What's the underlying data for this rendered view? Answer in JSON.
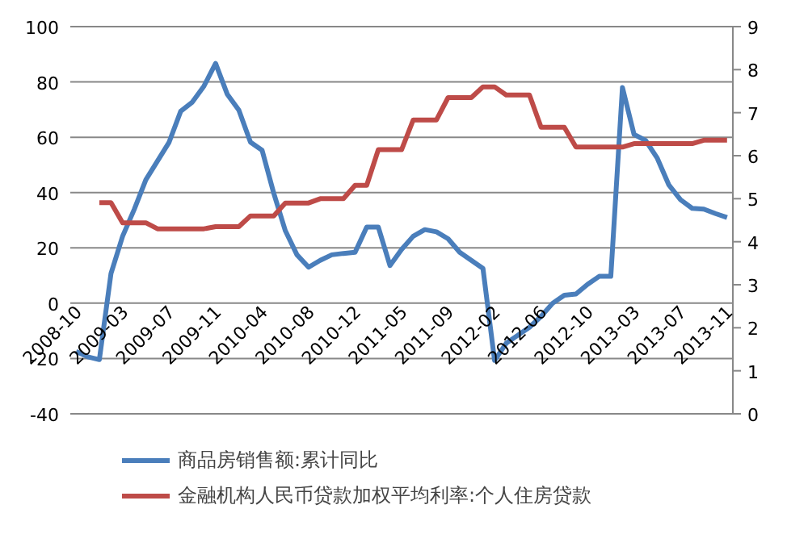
{
  "chart_data": {
    "type": "line",
    "categories": [
      "2008-10",
      null,
      null,
      null,
      "2009-03",
      null,
      null,
      null,
      "2009-07",
      null,
      null,
      null,
      "2009-11",
      null,
      null,
      null,
      "2010-04",
      null,
      null,
      null,
      "2010-08",
      null,
      null,
      null,
      "2010-12",
      null,
      null,
      null,
      "2011-05",
      null,
      null,
      null,
      "2011-09",
      null,
      null,
      null,
      "2012-02",
      null,
      null,
      null,
      "2012-06",
      null,
      null,
      null,
      "2012-10",
      null,
      null,
      null,
      "2013-03",
      null,
      null,
      null,
      "2013-07",
      null,
      null,
      null,
      "2013-11"
    ],
    "series": [
      {
        "name": "商品房销售额:累计同比",
        "color": "#4a7ebb",
        "values": [
          -17.5,
          -19.4,
          -20.4,
          10.7,
          24.2,
          33.9,
          44.6,
          51.4,
          58.2,
          69.4,
          72.7,
          78.5,
          86.7,
          75.6,
          69.8,
          58.2,
          55.3,
          39.8,
          26.2,
          17.5,
          13,
          15.5,
          17.5,
          18,
          18.4,
          27.5,
          27.5,
          13.6,
          19.4,
          24.2,
          26.6,
          25.8,
          23.3,
          18.4,
          15.5,
          12.6,
          -20.7,
          -14.5,
          -11.6,
          -8.7,
          -4.8,
          0,
          2.9,
          3.3,
          6.8,
          9.7,
          9.7,
          78,
          61,
          58.8,
          52.4,
          42.7,
          37.4,
          34.3,
          34,
          32.4,
          31
        ]
      },
      {
        "name": "金融机构人民币贷款加权平均利率:个人住房贷款",
        "color": "#be4b48",
        "axis": "y2",
        "values": [
          null,
          null,
          4.91,
          4.91,
          4.44,
          4.44,
          4.44,
          4.3,
          4.3,
          4.3,
          4.3,
          4.3,
          4.35,
          4.35,
          4.35,
          4.6,
          4.6,
          4.6,
          4.9,
          4.9,
          4.9,
          5,
          5,
          5,
          5.31,
          5.31,
          6.14,
          6.14,
          6.14,
          6.83,
          6.83,
          6.83,
          7.35,
          7.35,
          7.35,
          7.6,
          7.6,
          7.41,
          7.41,
          7.41,
          6.66,
          6.66,
          6.66,
          6.2,
          6.2,
          6.2,
          6.2,
          6.2,
          6.28,
          6.28,
          6.28,
          6.28,
          6.28,
          6.28,
          6.36,
          6.36,
          6.36
        ]
      }
    ],
    "ylim": [
      -40,
      100
    ],
    "yticks": [
      -40,
      -20,
      0,
      20,
      40,
      60,
      80,
      100
    ],
    "y2lim": [
      0,
      9
    ],
    "y2ticks": [
      0,
      1,
      2,
      3,
      4,
      5,
      6,
      7,
      8,
      9
    ],
    "grid": "y",
    "legend": "bottom",
    "marker": "none",
    "line_style": "solid"
  }
}
